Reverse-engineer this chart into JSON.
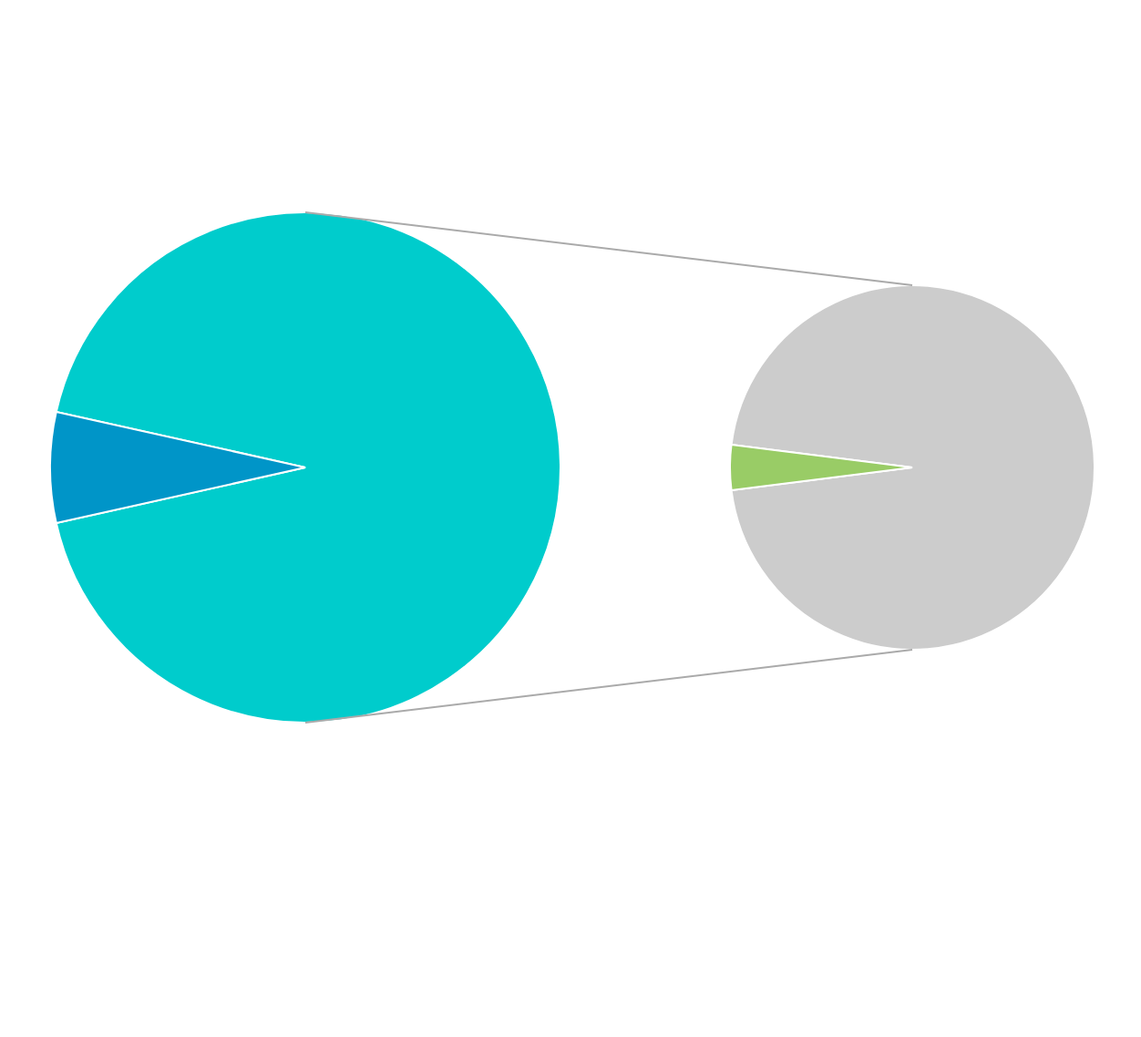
{
  "chart_data": [
    {
      "type": "pie",
      "categories": [
        null,
        null
      ],
      "values": [
        93,
        7
      ],
      "colors": [
        "#00cccc",
        "#0095c8"
      ]
    },
    {
      "type": "pie",
      "categories": [
        null,
        null
      ],
      "values": [
        96,
        4
      ],
      "colors": [
        "#cccccc",
        "#99cc66"
      ]
    }
  ]
}
